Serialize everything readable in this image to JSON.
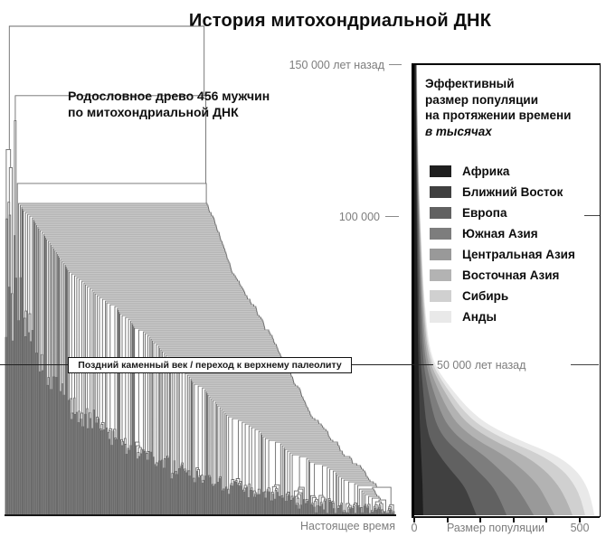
{
  "title": "История митохондриальной ДНК",
  "tree": {
    "caption_line1": "Родословное древо 456 мужчин",
    "caption_line2": "по митохондриальной ДНК"
  },
  "timeline": {
    "label_150k": "150 000 лет назад",
    "label_100k": "100 000",
    "label_50k": "50 000 лет назад",
    "label_present": "Настоящее время",
    "era_annotation": "Поздний каменный век / переход к верхнему палеолиту"
  },
  "panel": {
    "header_line1": "Эффективный",
    "header_line2": "размер популяции",
    "header_line3": "на протяжении времени",
    "header_units": "в тысячах",
    "xaxis_zero": "0",
    "xaxis_label": "Размер популяции",
    "xaxis_max": "500"
  },
  "colors": {
    "tree_line": "#6b6b6b",
    "accent_black": "#000000",
    "muted_text": "#7d7d7d"
  },
  "chart_data": [
    {
      "type": "dendrogram",
      "title": "Родословное древо 456 мужчин по митохондриальной ДНК",
      "leaf_count": 456,
      "orientation": "root-top-leaves-bottom",
      "time_axis": {
        "unit": "лет назад",
        "ticks": [
          150000,
          100000,
          50000,
          0
        ],
        "tick_labels": [
          "150 000 лет назад",
          "100 000",
          "50 000 лет назад",
          "Настоящее время"
        ]
      },
      "annotation": "Поздний каменный век / переход к верхнему палеолиту",
      "annotation_time": 50000
    },
    {
      "type": "area",
      "stacked": true,
      "title": "Эффективный размер популяции на протяжении времени",
      "units_note": "в тысячах",
      "xlabel": "Размер популяции",
      "xlim": [
        0,
        500
      ],
      "x_ticks": [
        0,
        100,
        200,
        300,
        400,
        500
      ],
      "time_axis_kya": [
        150,
        130,
        110,
        100,
        90,
        80,
        70,
        60,
        55,
        50,
        45,
        40,
        35,
        30,
        25,
        20,
        15,
        10,
        5,
        0
      ],
      "legend_position": "top",
      "grid": false,
      "series": [
        {
          "name": "Африка",
          "color": "#1f1f1f",
          "values": [
            4,
            5,
            6,
            7,
            8,
            9,
            10,
            11,
            12,
            13,
            14,
            15,
            16,
            17,
            19,
            21,
            23,
            25,
            26,
            27
          ]
        },
        {
          "name": "Ближний Восток",
          "color": "#404040",
          "values": [
            1,
            1,
            2,
            2,
            3,
            3,
            4,
            5,
            6,
            7,
            10,
            13,
            16,
            20,
            29,
            54,
            87,
            125,
            144,
            161
          ]
        },
        {
          "name": "Европа",
          "color": "#616161",
          "values": [
            1,
            1,
            2,
            3,
            3,
            4,
            5,
            6,
            7,
            9,
            12,
            17,
            23,
            31,
            47,
            70,
            80,
            85,
            90,
            91
          ]
        },
        {
          "name": "Южная Азия",
          "color": "#7d7d7d",
          "values": [
            0,
            1,
            1,
            1,
            2,
            3,
            3,
            5,
            6,
            8,
            12,
            17,
            23,
            32,
            48,
            65,
            70,
            70,
            75,
            82
          ]
        },
        {
          "name": "Центральная Азия",
          "color": "#999999",
          "values": [
            1,
            1,
            1,
            2,
            2,
            2,
            3,
            4,
            5,
            7,
            12,
            18,
            24,
            33,
            47,
            62,
            70,
            70,
            65,
            63
          ]
        },
        {
          "name": "Восточная Азия",
          "color": "#b3b3b3",
          "values": [
            0,
            0,
            1,
            1,
            2,
            2,
            3,
            4,
            5,
            7,
            12,
            18,
            24,
            33,
            47,
            61,
            65,
            60,
            60,
            54
          ]
        },
        {
          "name": "Сибирь",
          "color": "#d0d0d0",
          "values": [
            1,
            1,
            1,
            1,
            1,
            2,
            2,
            3,
            4,
            6,
            10,
            15,
            21,
            29,
            41,
            52,
            55,
            50,
            45,
            38
          ]
        },
        {
          "name": "Анды",
          "color": "#e9e9e9",
          "values": [
            0,
            0,
            0,
            1,
            1,
            1,
            2,
            3,
            4,
            6,
            10,
            15,
            21,
            29,
            40,
            45,
            40,
            35,
            30,
            28
          ]
        }
      ]
    }
  ]
}
